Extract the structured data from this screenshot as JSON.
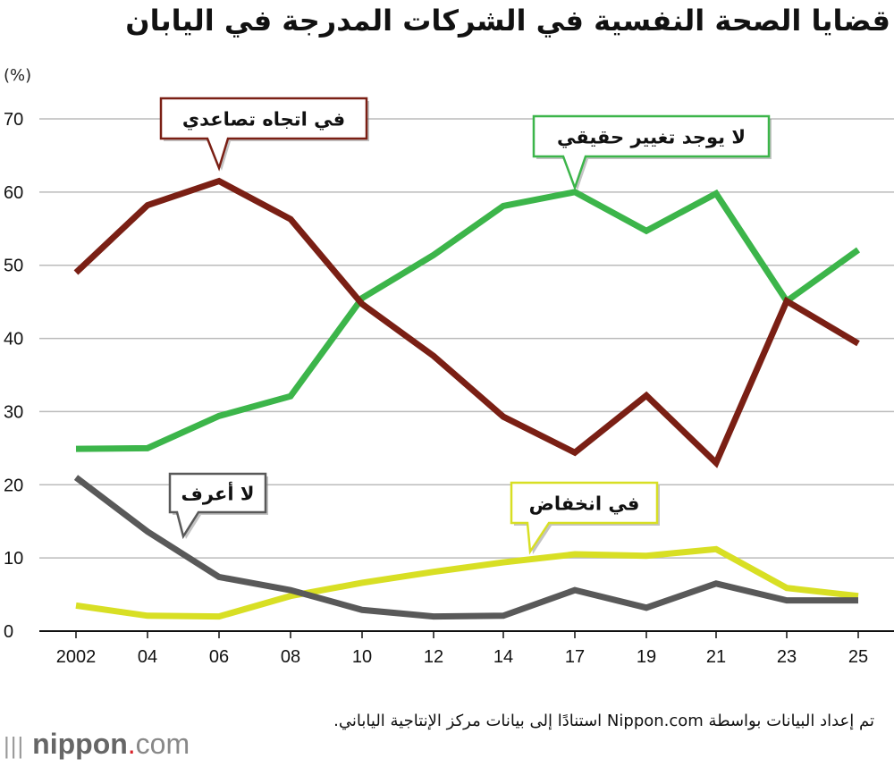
{
  "title": "قضايا الصحة النفسية في الشركات المدرجة في اليابان",
  "source": "تم إعداد البيانات بواسطة Nippon.com استنادًا إلى بيانات مركز الإنتاجية الياباني.",
  "logo": {
    "name": "nippon",
    "dot": ".",
    "suffix": "com"
  },
  "chart_data": {
    "type": "line",
    "title": "قضايا الصحة النفسية في الشركات المدرجة في اليابان",
    "ylabel": "(%)",
    "ylim": [
      0,
      70
    ],
    "yticks": [
      0,
      10,
      20,
      30,
      40,
      50,
      60,
      70
    ],
    "grid": true,
    "categories": [
      "2002",
      "04",
      "06",
      "08",
      "10",
      "12",
      "14",
      "17",
      "19",
      "21",
      "23",
      "25"
    ],
    "series": [
      {
        "name": "في اتجاه تصاعدي",
        "color": "#7a1f14",
        "values": [
          49.0,
          58.2,
          61.5,
          56.3,
          44.7,
          37.6,
          29.3,
          24.4,
          32.2,
          23.0,
          45.1,
          39.3
        ]
      },
      {
        "name": "لا يوجد تغيير حقيقي",
        "color": "#3cb54a",
        "values": [
          24.9,
          25.0,
          29.4,
          32.1,
          45.5,
          51.4,
          58.1,
          60.0,
          54.7,
          59.8,
          45.1,
          52.1
        ]
      },
      {
        "name": "لا أعرف",
        "color": "#595959",
        "values": [
          21.0,
          13.6,
          7.4,
          5.6,
          2.9,
          2.0,
          2.1,
          5.6,
          3.2,
          6.5,
          4.2,
          4.2
        ]
      },
      {
        "name": "في انخفاض",
        "color": "#d8df24",
        "values": [
          3.5,
          2.1,
          2.0,
          4.8,
          6.6,
          8.1,
          9.4,
          10.5,
          10.3,
          11.2,
          5.9,
          4.8
        ]
      }
    ]
  }
}
